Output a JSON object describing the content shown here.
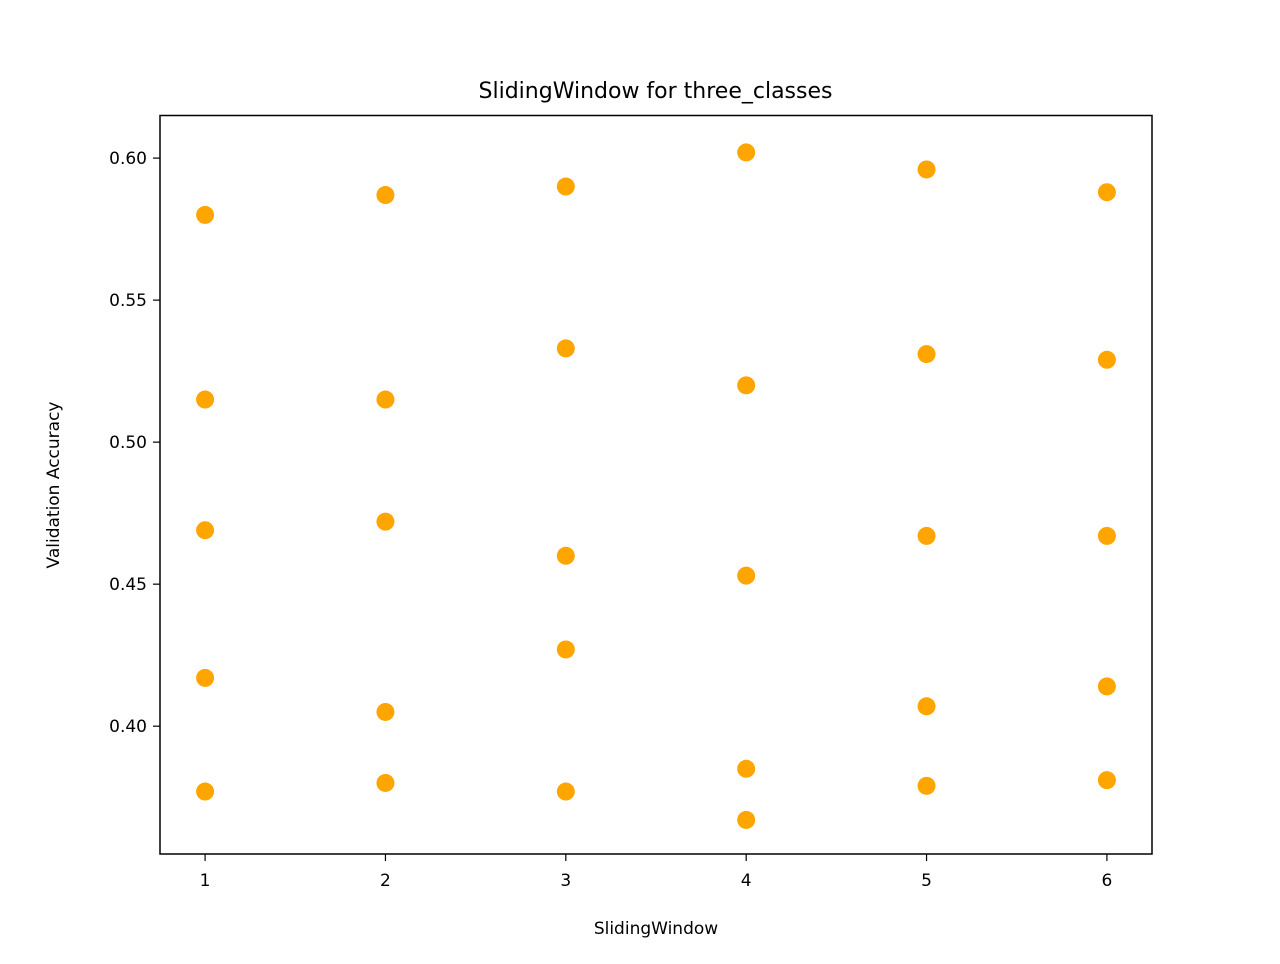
{
  "chart_data": {
    "type": "scatter",
    "title": "SlidingWindow for three_classes",
    "xlabel": "SlidingWindow",
    "ylabel": "Validation Accuracy",
    "xlim": [
      0.75,
      6.25
    ],
    "ylim": [
      0.355,
      0.615
    ],
    "xticks": [
      1,
      2,
      3,
      4,
      5,
      6
    ],
    "xtick_labels": [
      "1",
      "2",
      "3",
      "4",
      "5",
      "6"
    ],
    "yticks": [
      0.4,
      0.45,
      0.5,
      0.55,
      0.6
    ],
    "ytick_labels": [
      "0.40",
      "0.45",
      "0.50",
      "0.55",
      "0.60"
    ],
    "grid": false,
    "marker_color": "#ffa500",
    "points": [
      {
        "x": 1,
        "y": 0.58
      },
      {
        "x": 1,
        "y": 0.515
      },
      {
        "x": 1,
        "y": 0.469
      },
      {
        "x": 1,
        "y": 0.417
      },
      {
        "x": 1,
        "y": 0.377
      },
      {
        "x": 2,
        "y": 0.587
      },
      {
        "x": 2,
        "y": 0.515
      },
      {
        "x": 2,
        "y": 0.472
      },
      {
        "x": 2,
        "y": 0.405
      },
      {
        "x": 2,
        "y": 0.38
      },
      {
        "x": 3,
        "y": 0.59
      },
      {
        "x": 3,
        "y": 0.533
      },
      {
        "x": 3,
        "y": 0.46
      },
      {
        "x": 3,
        "y": 0.427
      },
      {
        "x": 3,
        "y": 0.377
      },
      {
        "x": 4,
        "y": 0.602
      },
      {
        "x": 4,
        "y": 0.52
      },
      {
        "x": 4,
        "y": 0.453
      },
      {
        "x": 4,
        "y": 0.385
      },
      {
        "x": 4,
        "y": 0.367
      },
      {
        "x": 5,
        "y": 0.596
      },
      {
        "x": 5,
        "y": 0.531
      },
      {
        "x": 5,
        "y": 0.467
      },
      {
        "x": 5,
        "y": 0.407
      },
      {
        "x": 5,
        "y": 0.379
      },
      {
        "x": 6,
        "y": 0.588
      },
      {
        "x": 6,
        "y": 0.529
      },
      {
        "x": 6,
        "y": 0.467
      },
      {
        "x": 6,
        "y": 0.414
      },
      {
        "x": 6,
        "y": 0.381
      }
    ]
  }
}
